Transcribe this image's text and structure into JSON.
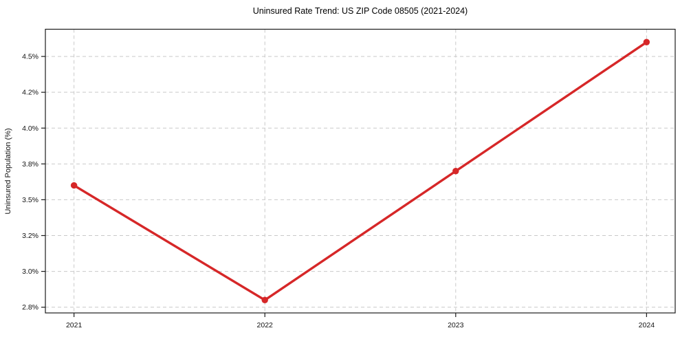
{
  "page": {
    "background_color": "#ffffff"
  },
  "chart_data": {
    "type": "line",
    "title": "Uninsured Rate Trend: US ZIP Code 08505 (2021-2024)",
    "xlabel": "",
    "ylabel": "Uninsured Population (%)",
    "categories": [
      "2021",
      "2022",
      "2023",
      "2024"
    ],
    "values": [
      3.6,
      2.8,
      3.7,
      4.6
    ],
    "unit": "%",
    "ylim": [
      2.71,
      4.69
    ],
    "x_margin_fraction": 0.05,
    "y_ticks": [
      {
        "value": 2.75,
        "label": "2.8%"
      },
      {
        "value": 3.0,
        "label": "3.0%"
      },
      {
        "value": 3.25,
        "label": "3.2%"
      },
      {
        "value": 3.5,
        "label": "3.5%"
      },
      {
        "value": 3.75,
        "label": "3.8%"
      },
      {
        "value": 4.0,
        "label": "4.0%"
      },
      {
        "value": 4.25,
        "label": "4.2%"
      },
      {
        "value": 4.5,
        "label": "4.5%"
      }
    ],
    "grid": true,
    "grid_style": "dashed",
    "legend": false,
    "marker": "circle",
    "colors": {
      "line": "#d62728",
      "marker": "#d62728",
      "grid": "#c9c9c9",
      "frame": "#1a1a1a",
      "text": "#111111",
      "background": "#ffffff"
    }
  }
}
